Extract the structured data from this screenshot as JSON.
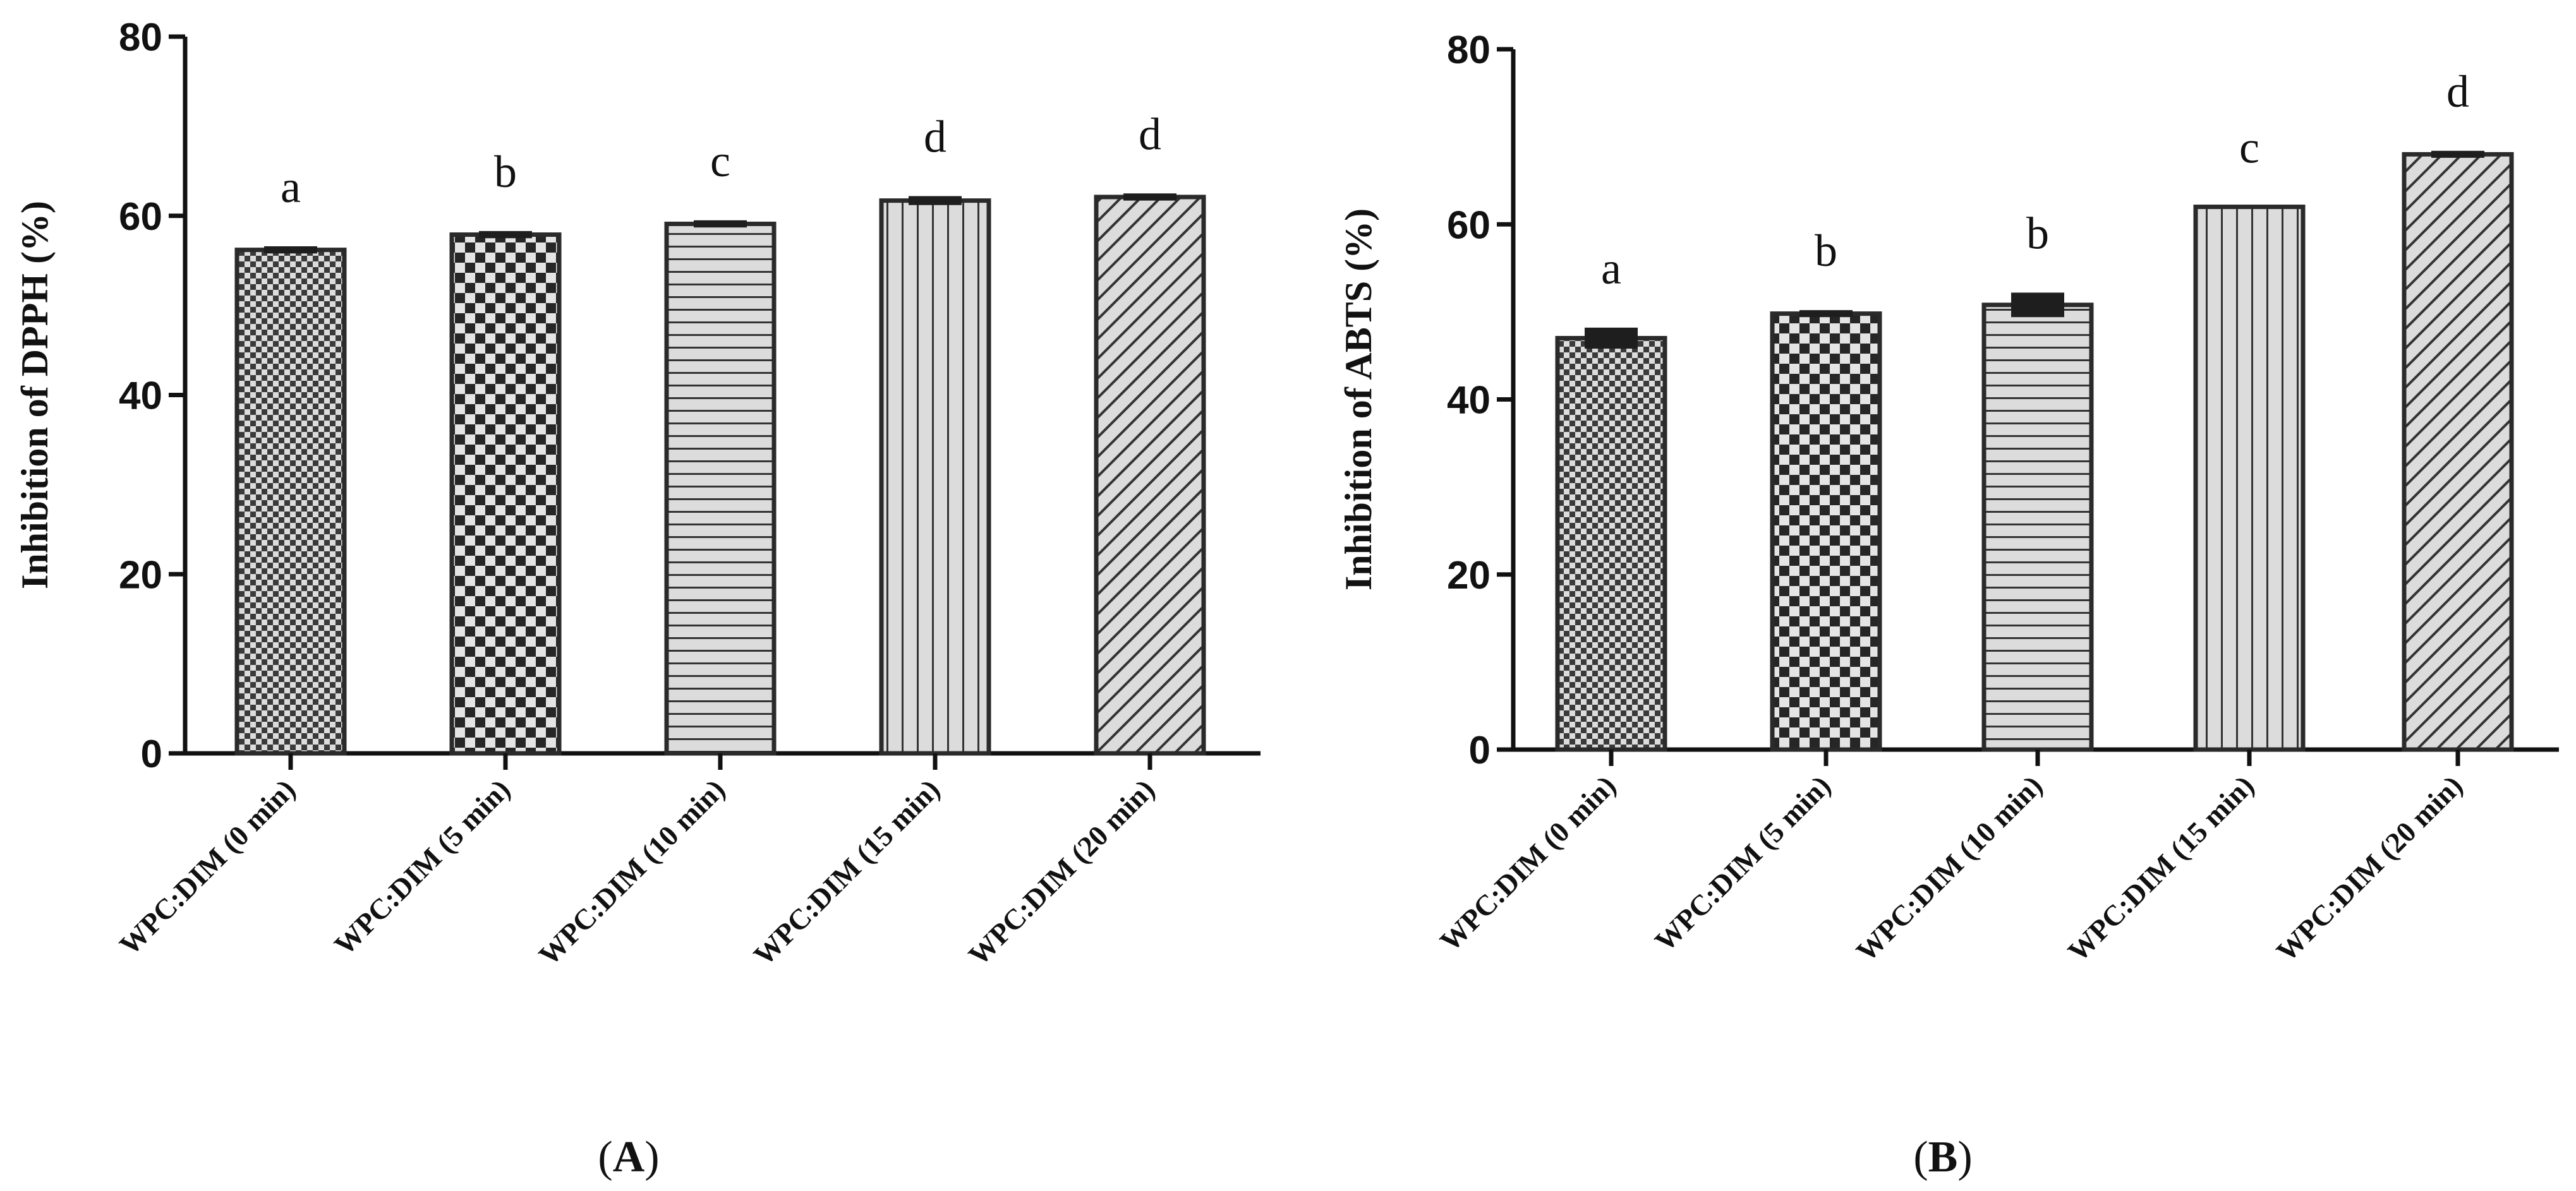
{
  "chart_data": [
    {
      "panel": "A",
      "caption_letter": "A",
      "type": "bar",
      "ylabel": "Inhibition of DPPH (%)",
      "ylim": [
        0,
        80
      ],
      "yticks": [
        0,
        20,
        40,
        60,
        80
      ],
      "categories": [
        "WPC:DIM (0 min)",
        "WPC:DIM (5 min)",
        "WPC:DIM (10 min)",
        "WPC:DIM (15 min)",
        "WPC:DIM (20 min)"
      ],
      "values": [
        56.2,
        57.9,
        59.1,
        61.7,
        62.1
      ],
      "errors": [
        0.4,
        0.4,
        0.4,
        0.5,
        0.4
      ],
      "significance_letters": [
        "a",
        "b",
        "c",
        "d",
        "d"
      ],
      "patterns": [
        "small-checker",
        "large-checker",
        "horizontal-lines",
        "vertical-lines",
        "diagonal-lines"
      ]
    },
    {
      "panel": "B",
      "caption_letter": "B",
      "type": "bar",
      "ylabel": "Inhibition of ABTS (%)",
      "ylim": [
        0,
        80
      ],
      "yticks": [
        0,
        20,
        40,
        60,
        80
      ],
      "categories": [
        "WPC:DIM (0 min)",
        "WPC:DIM (5 min)",
        "WPC:DIM (10 min)",
        "WPC:DIM (15 min)",
        "WPC:DIM (20 min)"
      ],
      "values": [
        47.0,
        49.8,
        50.8,
        62.0,
        68.0
      ],
      "errors": [
        1.2,
        0.4,
        1.4,
        0.0,
        0.4
      ],
      "significance_letters": [
        "a",
        "b",
        "b",
        "c",
        "d"
      ],
      "patterns": [
        "small-checker",
        "large-checker",
        "horizontal-lines",
        "vertical-lines",
        "diagonal-lines"
      ]
    }
  ],
  "colors": {
    "bar_fill": "#dcdcdc",
    "pattern_ink": "#2f2f2f",
    "axis": "#111111"
  }
}
